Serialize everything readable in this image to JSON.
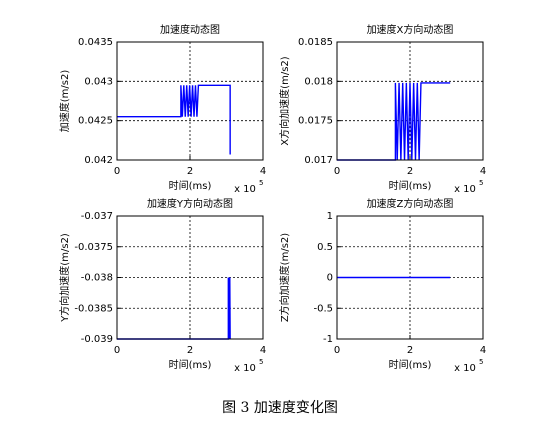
{
  "caption": "图 3  加速度变化图",
  "chart_data": [
    {
      "type": "line",
      "title": "加速度动态图",
      "x_label": "时间(ms)",
      "y_label": "加速度(m/s2)",
      "x_scale_label": "x 10",
      "x_scale_exponent": "5",
      "xlim": [
        0,
        4
      ],
      "xticks": [
        0,
        2,
        4
      ],
      "ylim": [
        0.042,
        0.0435
      ],
      "yticks": [
        0.042,
        0.0425,
        0.043,
        0.0435
      ],
      "grid": true,
      "series": [
        {
          "color": "#0000ff",
          "x": [
            0,
            1.75,
            1.75,
            1.79,
            1.83,
            1.87,
            1.91,
            1.95,
            1.99,
            2.03,
            2.07,
            2.11,
            2.15,
            2.19,
            2.23,
            2.25,
            3.1,
            3.1
          ],
          "values": [
            0.04255,
            0.04255,
            0.04295,
            0.04255,
            0.04295,
            0.04255,
            0.04295,
            0.04255,
            0.04295,
            0.04255,
            0.04295,
            0.04255,
            0.04295,
            0.04255,
            0.04295,
            0.04295,
            0.04295,
            0.04207
          ]
        }
      ]
    },
    {
      "type": "line",
      "title": "加速度X方向动态图",
      "x_label": "时间(ms)",
      "y_label": "X方向加速度(m/s2)",
      "x_scale_label": "x 10",
      "x_scale_exponent": "5",
      "xlim": [
        0,
        4
      ],
      "xticks": [
        0,
        2,
        4
      ],
      "ylim": [
        0.017,
        0.0185
      ],
      "yticks": [
        0.017,
        0.0175,
        0.018,
        0.0185
      ],
      "grid": true,
      "series": [
        {
          "color": "#0000ff",
          "x": [
            0,
            1.6,
            1.6,
            1.65,
            1.7,
            1.75,
            1.8,
            1.85,
            1.9,
            1.95,
            2.0,
            2.05,
            2.1,
            2.15,
            2.2,
            2.25,
            2.3,
            3.1
          ],
          "values": [
            0.017,
            0.017,
            0.01798,
            0.017,
            0.01798,
            0.017,
            0.01798,
            0.017,
            0.01798,
            0.017,
            0.01798,
            0.017,
            0.01798,
            0.017,
            0.01798,
            0.017,
            0.01798,
            0.01798
          ]
        }
      ]
    },
    {
      "type": "line",
      "title": "加速度Y方向动态图",
      "x_label": "时间(ms)",
      "y_label": "Y方向加速度(m/s2)",
      "x_scale_label": "x 10",
      "x_scale_exponent": "5",
      "xlim": [
        0,
        4
      ],
      "xticks": [
        0,
        2,
        4
      ],
      "ylim": [
        -0.039,
        -0.037
      ],
      "yticks": [
        -0.039,
        -0.0385,
        -0.038,
        -0.0375,
        -0.037
      ],
      "grid": true,
      "series": [
        {
          "color": "#0000ff",
          "x": [
            0,
            3.05,
            3.05,
            3.07,
            3.09,
            3.1
          ],
          "values": [
            -0.039,
            -0.039,
            -0.038,
            -0.039,
            -0.038,
            -0.039
          ]
        }
      ]
    },
    {
      "type": "line",
      "title": "加速度Z方向动态图",
      "x_label": "时间(ms)",
      "y_label": "Z方向加速度(m/s2)",
      "x_scale_label": "x 10",
      "x_scale_exponent": "5",
      "xlim": [
        0,
        4
      ],
      "xticks": [
        0,
        2,
        4
      ],
      "ylim": [
        -1,
        1
      ],
      "yticks": [
        -1,
        -0.5,
        0,
        0.5,
        1
      ],
      "grid": true,
      "series": [
        {
          "color": "#0000ff",
          "x": [
            0,
            3.1
          ],
          "values": [
            0,
            0
          ]
        }
      ]
    }
  ]
}
